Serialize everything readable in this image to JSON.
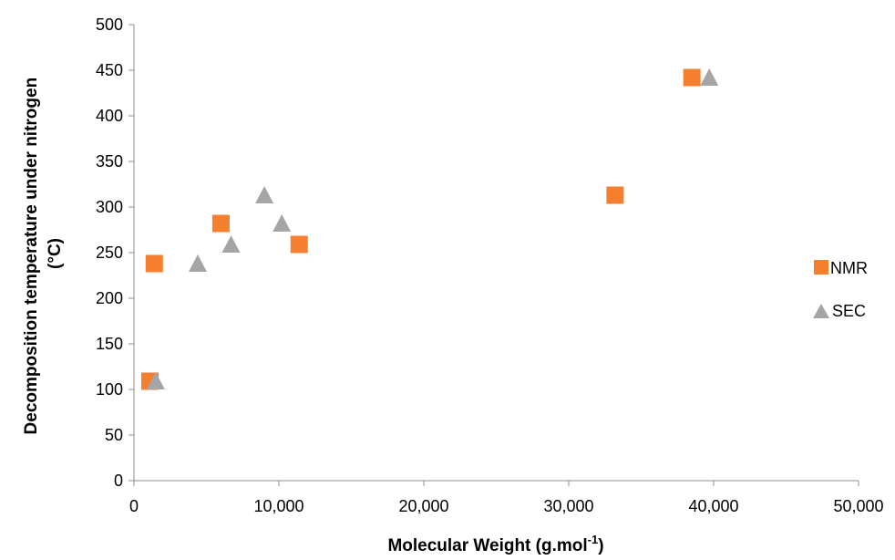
{
  "chart_data": {
    "type": "scatter",
    "xlabel_main": "Molecular Weight (g.mol",
    "xlabel_sup": "-1",
    "xlabel_close": ")",
    "ylabel_line1": "Decomposition temperature under nitrogen",
    "ylabel_line2": "(°C)",
    "xlim": [
      0,
      50000
    ],
    "ylim": [
      0,
      500
    ],
    "x_ticks": [
      0,
      10000,
      20000,
      30000,
      40000,
      50000
    ],
    "x_tick_labels": [
      "0",
      "10,000",
      "20,000",
      "30,000",
      "40,000",
      "50,000"
    ],
    "y_ticks": [
      0,
      50,
      100,
      150,
      200,
      250,
      300,
      350,
      400,
      450,
      500
    ],
    "y_tick_labels": [
      "0",
      "50",
      "100",
      "150",
      "200",
      "250",
      "300",
      "350",
      "400",
      "450",
      "500"
    ],
    "grid": false,
    "legend_position": "right",
    "series": [
      {
        "name": "NMR",
        "marker": "square",
        "color": "#F4802F",
        "points": [
          {
            "x": 1100,
            "y": 109
          },
          {
            "x": 1400,
            "y": 238
          },
          {
            "x": 6000,
            "y": 282
          },
          {
            "x": 11400,
            "y": 259
          },
          {
            "x": 33200,
            "y": 313
          },
          {
            "x": 38500,
            "y": 442
          }
        ]
      },
      {
        "name": "SEC",
        "marker": "triangle",
        "color": "#A5A5A5",
        "points": [
          {
            "x": 1500,
            "y": 109
          },
          {
            "x": 4400,
            "y": 238
          },
          {
            "x": 6700,
            "y": 259
          },
          {
            "x": 9000,
            "y": 313
          },
          {
            "x": 10200,
            "y": 282
          },
          {
            "x": 39700,
            "y": 442
          }
        ]
      }
    ]
  }
}
